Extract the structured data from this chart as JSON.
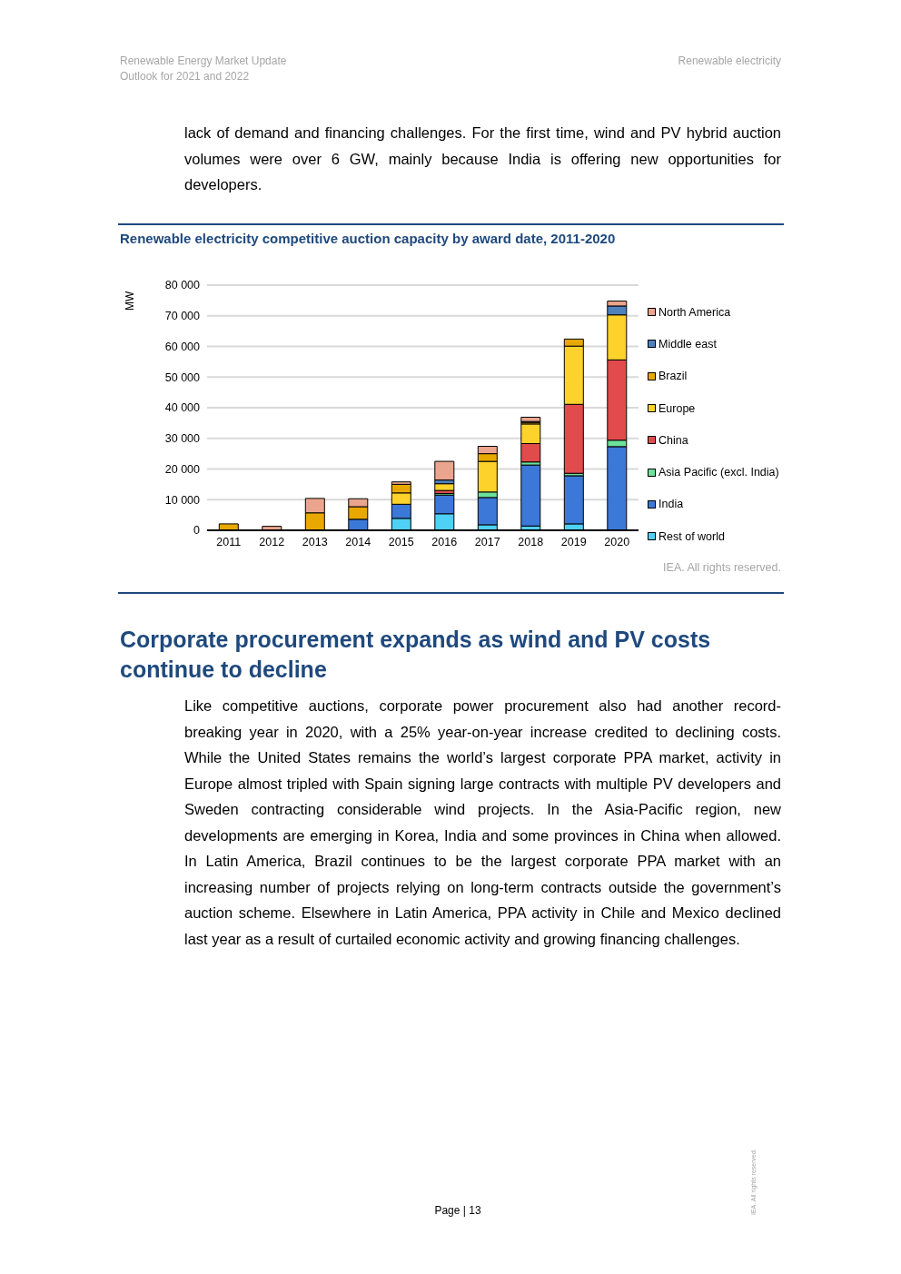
{
  "chart_data": {
    "type": "bar",
    "stacked": true,
    "title": "Renewable electricity competitive auction capacity by award date, 2011-2020",
    "ylabel": "MW",
    "categories": [
      "2011",
      "2012",
      "2013",
      "2014",
      "2015",
      "2016",
      "2017",
      "2018",
      "2019",
      "2020"
    ],
    "series": [
      {
        "name": "Rest of world",
        "color": "#4fd0f5",
        "values": [
          null,
          null,
          null,
          null,
          3900,
          5400,
          1800,
          1400,
          2100,
          null
        ]
      },
      {
        "name": "India",
        "color": "#3c78d8",
        "values": [
          null,
          null,
          null,
          3600,
          4600,
          6100,
          8900,
          19900,
          15700,
          27300
        ]
      },
      {
        "name": "Asia Pacific (excl. India)",
        "color": "#6ce29a",
        "values": [
          null,
          null,
          null,
          null,
          null,
          500,
          1800,
          1000,
          800,
          2100
        ]
      },
      {
        "name": "China",
        "color": "#e24b4b",
        "values": [
          null,
          null,
          null,
          null,
          null,
          1000,
          null,
          6000,
          22500,
          26200
        ]
      },
      {
        "name": "Europe",
        "color": "#fdd32b",
        "values": [
          null,
          null,
          null,
          null,
          3700,
          2200,
          10000,
          6400,
          19000,
          14700
        ]
      },
      {
        "name": "Brazil",
        "color": "#e8a800",
        "values": [
          2100,
          null,
          5700,
          4100,
          2800,
          null,
          2500,
          500,
          2300,
          null
        ]
      },
      {
        "name": "Middle east",
        "color": "#4f81bd",
        "values": [
          null,
          null,
          null,
          null,
          null,
          1200,
          null,
          300,
          null,
          2900
        ]
      },
      {
        "name": "North America",
        "color": "#eba58e",
        "values": [
          null,
          1300,
          4700,
          2600,
          800,
          6100,
          2400,
          1400,
          null,
          1600
        ]
      }
    ],
    "ylim": [
      0,
      80000
    ],
    "yticks": [
      {
        "value": 0,
        "label": "0"
      },
      {
        "value": 10000,
        "label": "10 000"
      },
      {
        "value": 20000,
        "label": "20 000"
      },
      {
        "value": 30000,
        "label": "30 000"
      },
      {
        "value": 40000,
        "label": "40 000"
      },
      {
        "value": 50000,
        "label": "50 000"
      },
      {
        "value": 60000,
        "label": "60 000"
      },
      {
        "value": 70000,
        "label": "70 000"
      },
      {
        "value": 80000,
        "label": "80 000"
      }
    ],
    "grid": "y",
    "legend": "right",
    "annotations": [
      "Renewable Energy Market Update",
      "Outlook for 2021 and 2022",
      "Renewable electricity",
      "lack of demand and financing challenges. For the first time, wind and PV hybrid auction volumes were over 6 GW, mainly because India is offering new opportunities for developers.",
      "IEA. All rights reserved.",
      "Corporate procurement expands as wind and PV costs continue to decline",
      "Like competitive auctions, corporate power procurement also had another record-breaking year in 2020, with a 25% year-on-year increase credited to declining costs. While the United States remains the world’s largest corporate PPA market, activity in Europe almost tripled with Spain signing large contracts with multiple PV developers and Sweden contracting considerable wind projects. In the Asia-Pacific region, new developments are emerging in Korea, India and some provinces in China when allowed. In Latin America, Brazil continues to be the largest corporate PPA market with an increasing number of projects relying on long-term contracts outside the government’s auction scheme. Elsewhere in Latin America, PPA activity in Chile and Mexico declined last year as a result of curtailed economic activity and growing financing challenges.",
      "Page | 13",
      "IEA. All rights reserved."
    ]
  }
}
